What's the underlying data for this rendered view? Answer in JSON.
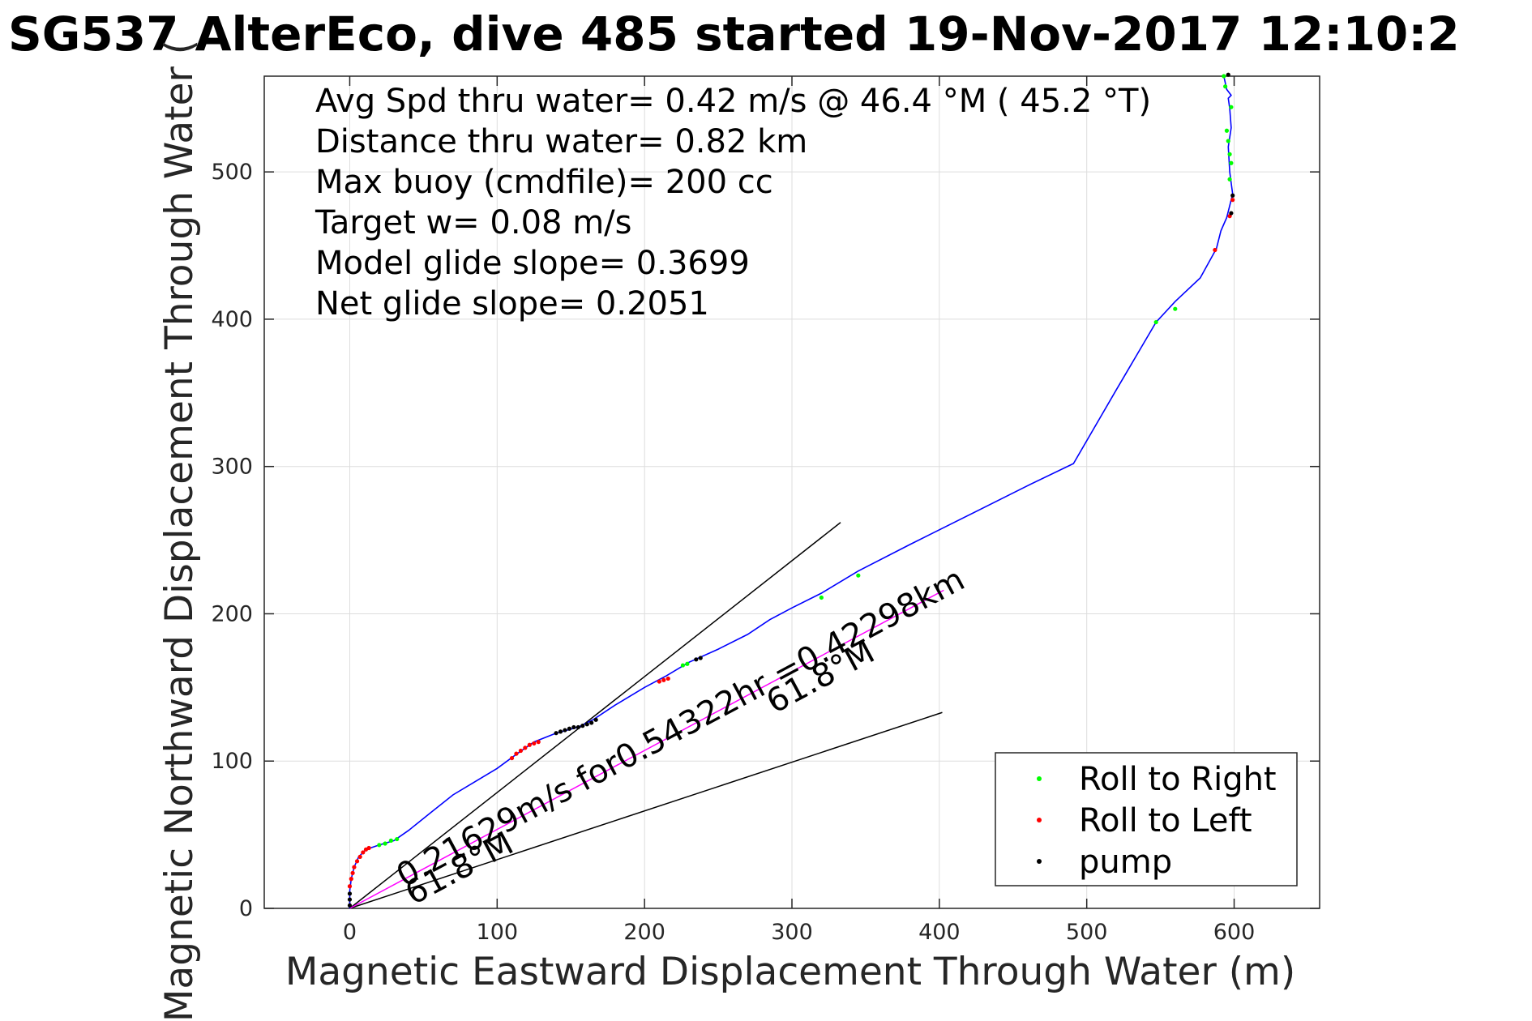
{
  "chart_data": {
    "type": "scatter",
    "title": "SG537 AlterEco, dive 485 started 19-Nov-2017 12:10:2",
    "xlabel": "Magnetic Eastward Displacement Through Water (m)",
    "ylabel": "Magnetic Northward Displacement Through Water (",
    "xlim": [
      -58,
      658
    ],
    "ylim": [
      0,
      565
    ],
    "xticks": [
      0,
      100,
      200,
      300,
      400,
      500,
      600
    ],
    "yticks": [
      0,
      100,
      200,
      300,
      400,
      500
    ],
    "grid": true,
    "annotations": [
      "Avg Spd thru water=  0.42 m/s @  46.4 °M ( 45.2 °T)",
      "Distance thru water=  0.82 km",
      "Max buoy (cmdfile)= 200 cc",
      "Target w= 0.08 m/s",
      "Model glide slope= 0.3699",
      "Net glide slope= 0.2051"
    ],
    "current_label": "0.21629m/s for0.54322hr =0.42298km",
    "heading_label_end": "61.8°M",
    "heading_label_start": "61.8°M",
    "track": {
      "name": "track",
      "color": "#0000ff",
      "x": [
        0,
        0,
        1,
        3,
        6,
        10,
        14,
        20,
        30,
        40,
        55,
        70,
        85,
        100,
        115,
        125,
        140,
        155,
        165,
        180,
        200,
        215,
        230,
        250,
        270,
        285,
        300,
        320,
        345,
        380,
        420,
        460,
        491,
        520,
        547,
        560,
        577,
        588,
        591,
        595,
        599,
        597,
        596,
        598,
        597,
        596,
        598,
        595,
        593
      ],
      "y": [
        0,
        12,
        20,
        28,
        35,
        39,
        41,
        43,
        46,
        53,
        65,
        77,
        86,
        95,
        106,
        113,
        119,
        123,
        128,
        138,
        150,
        158,
        167,
        176,
        186,
        196,
        204,
        214,
        229,
        247,
        267,
        287,
        302,
        352,
        398,
        412,
        428,
        448,
        460,
        469,
        485,
        500,
        517,
        530,
        543,
        550,
        552,
        556,
        565
      ]
    },
    "current_line": {
      "color": "#ff00ff",
      "x": [
        0,
        403
      ],
      "y": [
        0,
        216
      ]
    },
    "guide_lines": [
      {
        "x": [
          0,
          333
        ],
        "y": [
          0,
          262
        ]
      },
      {
        "x": [
          0,
          402
        ],
        "y": [
          0,
          133
        ]
      }
    ],
    "series": [
      {
        "name": "Roll to Right",
        "color": "#00ff00",
        "x": [
          20,
          24,
          28,
          32,
          226,
          229,
          320,
          345,
          547,
          560,
          593,
          594,
          595,
          596,
          597,
          598,
          598,
          597
        ],
        "y": [
          43,
          44,
          46,
          47,
          165,
          166,
          211,
          226,
          398,
          407,
          565,
          558,
          528,
          521,
          512,
          506,
          544,
          495
        ]
      },
      {
        "name": "Roll to Left",
        "color": "#ff0000",
        "x": [
          0,
          1,
          2,
          3,
          5,
          7,
          9,
          11,
          13,
          110,
          113,
          116,
          119,
          122,
          125,
          128,
          210,
          213,
          216,
          587,
          597,
          599
        ],
        "y": [
          15,
          20,
          24,
          28,
          32,
          35,
          38,
          40,
          41,
          102,
          105,
          107,
          109,
          111,
          112,
          113,
          154,
          155,
          156,
          447,
          470,
          481
        ]
      },
      {
        "name": "pump",
        "color": "#000000",
        "x": [
          0,
          0,
          0,
          140,
          143,
          146,
          149,
          152,
          155,
          158,
          161,
          164,
          167,
          235,
          238,
          599,
          598,
          596
        ],
        "y": [
          2,
          6,
          10,
          119,
          120,
          121,
          122,
          123,
          123,
          124,
          125,
          126,
          128,
          169,
          170,
          484,
          472,
          566
        ]
      }
    ],
    "legend_location": "bottom-right"
  }
}
